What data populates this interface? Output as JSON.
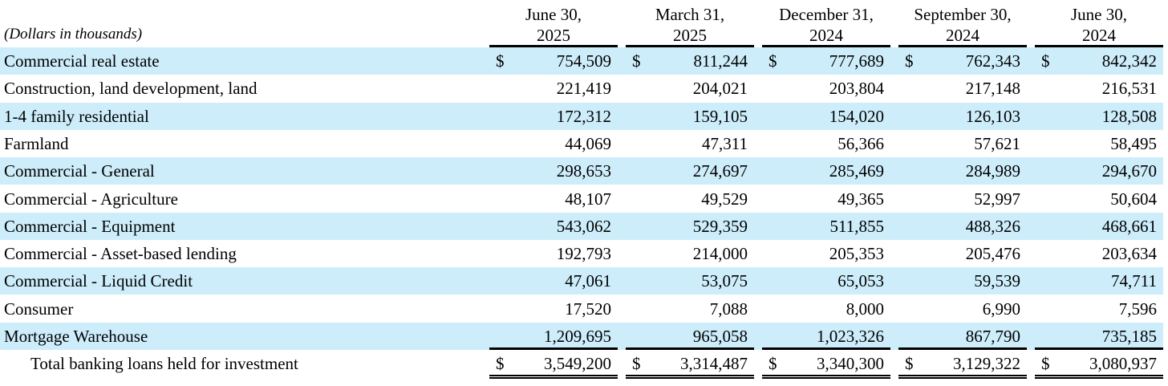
{
  "units_label": "(Dollars in thousands)",
  "columns": [
    {
      "line1": "June 30,",
      "line2": "2025"
    },
    {
      "line1": "March 31,",
      "line2": "2025"
    },
    {
      "line1": "December 31,",
      "line2": "2024"
    },
    {
      "line1": "September 30,",
      "line2": "2024"
    },
    {
      "line1": "June 30,",
      "line2": "2024"
    }
  ],
  "currency_symbol": "$",
  "shade_color": "#cdedfb",
  "rows": [
    {
      "label": "Commercial real estate",
      "values": [
        "754,509",
        "811,244",
        "777,689",
        "762,343",
        "842,342"
      ],
      "currency": true
    },
    {
      "label": "Construction, land development, land",
      "values": [
        "221,419",
        "204,021",
        "203,804",
        "217,148",
        "216,531"
      ]
    },
    {
      "label": "1-4 family residential",
      "values": [
        "172,312",
        "159,105",
        "154,020",
        "126,103",
        "128,508"
      ]
    },
    {
      "label": "Farmland",
      "values": [
        "44,069",
        "47,311",
        "56,366",
        "57,621",
        "58,495"
      ]
    },
    {
      "label": "Commercial - General",
      "values": [
        "298,653",
        "274,697",
        "285,469",
        "284,989",
        "294,670"
      ]
    },
    {
      "label": "Commercial - Agriculture",
      "values": [
        "48,107",
        "49,529",
        "49,365",
        "52,997",
        "50,604"
      ]
    },
    {
      "label": "Commercial - Equipment",
      "values": [
        "543,062",
        "529,359",
        "511,855",
        "488,326",
        "468,661"
      ]
    },
    {
      "label": "Commercial - Asset-based lending",
      "values": [
        "192,793",
        "214,000",
        "205,353",
        "205,476",
        "203,634"
      ]
    },
    {
      "label": "Commercial - Liquid Credit",
      "values": [
        "47,061",
        "53,075",
        "65,053",
        "59,539",
        "74,711"
      ]
    },
    {
      "label": "Consumer",
      "values": [
        "17,520",
        "7,088",
        "8,000",
        "6,990",
        "7,596"
      ]
    },
    {
      "label": "Mortgage Warehouse",
      "values": [
        "1,209,695",
        "965,058",
        "1,023,326",
        "867,790",
        "735,185"
      ]
    }
  ],
  "total": {
    "label": "Total banking loans held for investment",
    "values": [
      "3,549,200",
      "3,314,487",
      "3,340,300",
      "3,129,322",
      "3,080,937"
    ],
    "currency": true
  }
}
